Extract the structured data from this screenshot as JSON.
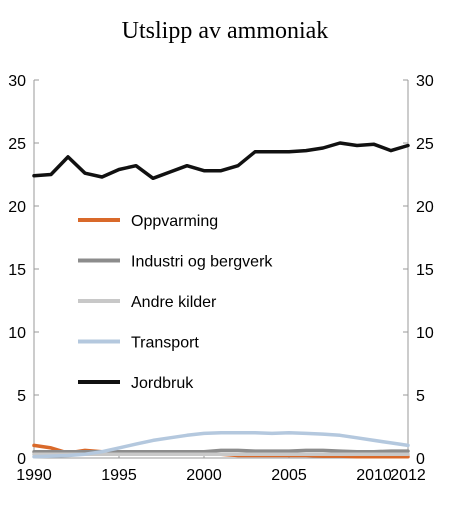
{
  "chart_data": {
    "type": "line",
    "title": "Utslipp av ammoniak",
    "xlabel": "",
    "ylabel": "",
    "xlim": [
      1990,
      2012
    ],
    "ylim": [
      0,
      30
    ],
    "x_ticks": [
      1990,
      1995,
      2000,
      2005,
      2010,
      2012
    ],
    "y_ticks": [
      0,
      5,
      10,
      15,
      20,
      25,
      30
    ],
    "legend_placement": "left-center",
    "grid": false,
    "x": [
      1990,
      1991,
      1992,
      1993,
      1994,
      1995,
      1996,
      1997,
      1998,
      1999,
      2000,
      2001,
      2002,
      2003,
      2004,
      2005,
      2006,
      2007,
      2008,
      2009,
      2010,
      2011,
      2012
    ],
    "series": [
      {
        "name": "Oppvarming",
        "color": "#d9692a",
        "values": [
          1.0,
          0.8,
          0.4,
          0.6,
          0.5,
          0.4,
          0.5,
          0.4,
          0.4,
          0.3,
          0.3,
          0.3,
          0.2,
          0.2,
          0.2,
          0.2,
          0.2,
          0.15,
          0.15,
          0.1,
          0.1,
          0.1,
          0.1
        ]
      },
      {
        "name": "Industri og bergverk",
        "color": "#8c8c8c",
        "values": [
          0.5,
          0.5,
          0.5,
          0.5,
          0.5,
          0.5,
          0.5,
          0.5,
          0.5,
          0.5,
          0.5,
          0.6,
          0.6,
          0.55,
          0.55,
          0.55,
          0.6,
          0.6,
          0.55,
          0.5,
          0.5,
          0.55,
          0.55
        ]
      },
      {
        "name": "Andre kilder",
        "color": "#c8c8c8",
        "values": [
          0.3,
          0.3,
          0.3,
          0.3,
          0.3,
          0.3,
          0.3,
          0.3,
          0.3,
          0.3,
          0.3,
          0.3,
          0.3,
          0.3,
          0.3,
          0.3,
          0.3,
          0.3,
          0.3,
          0.3,
          0.3,
          0.3,
          0.3
        ]
      },
      {
        "name": "Transport",
        "color": "#b4c8de",
        "values": [
          0.1,
          0.15,
          0.2,
          0.3,
          0.5,
          0.8,
          1.1,
          1.4,
          1.6,
          1.8,
          1.95,
          2.0,
          2.0,
          2.0,
          1.95,
          2.0,
          1.95,
          1.9,
          1.8,
          1.6,
          1.4,
          1.2,
          1.0
        ]
      },
      {
        "name": "Jordbruk",
        "color": "#111111",
        "values": [
          22.4,
          22.5,
          23.9,
          22.6,
          22.3,
          22.9,
          23.2,
          22.2,
          22.7,
          23.2,
          22.8,
          22.8,
          23.2,
          24.3,
          24.3,
          24.3,
          24.4,
          24.6,
          25.0,
          24.8,
          24.9,
          24.4,
          24.8
        ]
      }
    ]
  }
}
